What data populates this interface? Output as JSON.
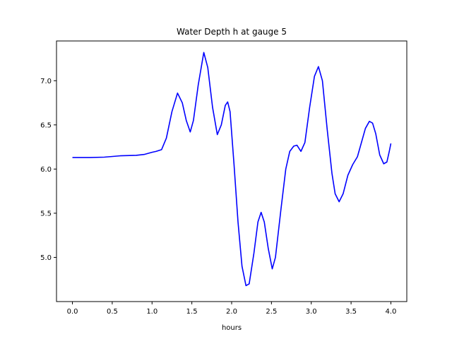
{
  "chart_data": {
    "type": "line",
    "title": "Water Depth h at gauge 5",
    "xlabel": "hours",
    "ylabel": "",
    "xlim": [
      -0.2,
      4.2
    ],
    "ylim": [
      4.5,
      7.45
    ],
    "xticks": [
      0.0,
      0.5,
      1.0,
      1.5,
      2.0,
      2.5,
      3.0,
      3.5,
      4.0
    ],
    "xtick_labels": [
      "0.0",
      "0.5",
      "1.0",
      "1.5",
      "2.0",
      "2.5",
      "3.0",
      "3.5",
      "4.0"
    ],
    "yticks": [
      5.0,
      5.5,
      6.0,
      6.5,
      7.0
    ],
    "ytick_labels": [
      "5.0",
      "5.5",
      "6.0",
      "6.5",
      "7.0"
    ],
    "grid": false,
    "series": [
      {
        "color": "#0000ff",
        "points": [
          [
            0.0,
            6.13
          ],
          [
            0.2,
            6.13
          ],
          [
            0.4,
            6.135
          ],
          [
            0.6,
            6.15
          ],
          [
            0.8,
            6.155
          ],
          [
            0.9,
            6.165
          ],
          [
            1.0,
            6.19
          ],
          [
            1.05,
            6.2
          ],
          [
            1.12,
            6.22
          ],
          [
            1.18,
            6.35
          ],
          [
            1.25,
            6.65
          ],
          [
            1.32,
            6.86
          ],
          [
            1.38,
            6.75
          ],
          [
            1.43,
            6.55
          ],
          [
            1.48,
            6.42
          ],
          [
            1.52,
            6.55
          ],
          [
            1.58,
            6.95
          ],
          [
            1.65,
            7.32
          ],
          [
            1.7,
            7.15
          ],
          [
            1.76,
            6.7
          ],
          [
            1.82,
            6.39
          ],
          [
            1.87,
            6.5
          ],
          [
            1.92,
            6.72
          ],
          [
            1.95,
            6.76
          ],
          [
            1.98,
            6.65
          ],
          [
            2.03,
            6.05
          ],
          [
            2.08,
            5.4
          ],
          [
            2.13,
            4.9
          ],
          [
            2.18,
            4.68
          ],
          [
            2.22,
            4.7
          ],
          [
            2.28,
            5.05
          ],
          [
            2.33,
            5.4
          ],
          [
            2.37,
            5.51
          ],
          [
            2.41,
            5.4
          ],
          [
            2.46,
            5.1
          ],
          [
            2.51,
            4.87
          ],
          [
            2.55,
            5.0
          ],
          [
            2.62,
            5.55
          ],
          [
            2.68,
            6.0
          ],
          [
            2.73,
            6.2
          ],
          [
            2.78,
            6.26
          ],
          [
            2.82,
            6.27
          ],
          [
            2.87,
            6.2
          ],
          [
            2.92,
            6.3
          ],
          [
            2.98,
            6.7
          ],
          [
            3.04,
            7.05
          ],
          [
            3.09,
            7.16
          ],
          [
            3.14,
            7.0
          ],
          [
            3.2,
            6.45
          ],
          [
            3.26,
            5.95
          ],
          [
            3.3,
            5.72
          ],
          [
            3.35,
            5.63
          ],
          [
            3.4,
            5.72
          ],
          [
            3.46,
            5.93
          ],
          [
            3.52,
            6.05
          ],
          [
            3.58,
            6.14
          ],
          [
            3.63,
            6.3
          ],
          [
            3.68,
            6.46
          ],
          [
            3.73,
            6.54
          ],
          [
            3.77,
            6.52
          ],
          [
            3.81,
            6.4
          ],
          [
            3.86,
            6.16
          ],
          [
            3.91,
            6.06
          ],
          [
            3.95,
            6.08
          ],
          [
            3.98,
            6.2
          ],
          [
            4.0,
            6.29
          ]
        ]
      }
    ]
  }
}
